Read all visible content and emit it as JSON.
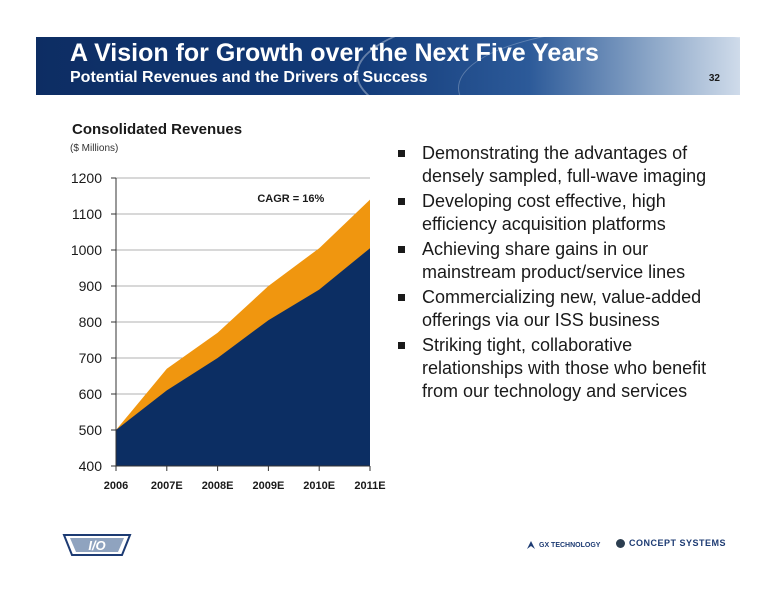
{
  "header": {
    "title": "A Vision for Growth over the Next Five Years",
    "subtitle": "Potential Revenues and the Drivers of Success",
    "page_number": "32"
  },
  "chart_data": {
    "type": "area",
    "title": "Consolidated Revenues",
    "subtitle": "($ Millions)",
    "categories": [
      "2006",
      "2007E",
      "2008E",
      "2009E",
      "2010E",
      "2011E"
    ],
    "series": [
      {
        "name": "",
        "values": [
          500,
          610,
          700,
          805,
          890,
          1005
        ],
        "color": "#0c2e63"
      },
      {
        "name": "",
        "values": [
          500,
          670,
          770,
          900,
          1005,
          1140
        ],
        "color": "#f0960f"
      }
    ],
    "ylim": [
      400,
      1200
    ],
    "yticks": [
      400,
      500,
      600,
      700,
      800,
      900,
      1000,
      1100,
      1200
    ],
    "grid": true,
    "annotation": "CAGR = 16%"
  },
  "bullets": [
    "Demonstrating the advantages of densely sampled, full-wave imaging",
    "Developing cost effective, high efficiency acquisition platforms",
    "Achieving share gains in our mainstream product/service lines",
    "Commercializing new, value-added offerings via our ISS business",
    "Striking tight, collaborative relationships with those who benefit from our technology and services"
  ],
  "footer": {
    "logos": [
      "I/O",
      "GX TECHNOLOGY",
      "CONCEPT SYSTEMS"
    ]
  },
  "colors": {
    "header_dark": "#0d2d63",
    "series_base": "#0c2e63",
    "series_upside": "#f0960f"
  }
}
